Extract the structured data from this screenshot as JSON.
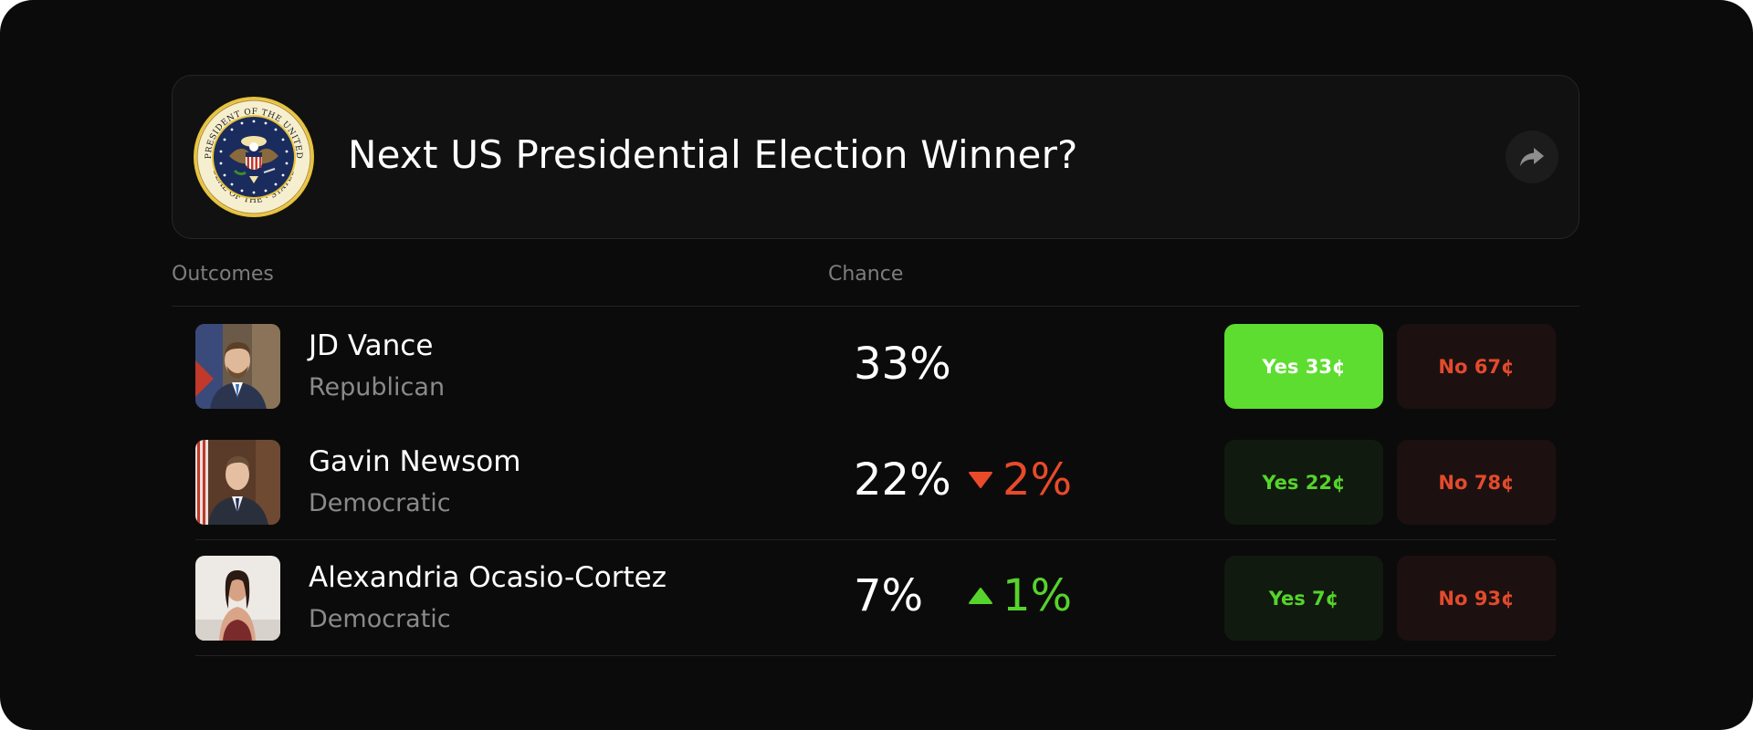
{
  "market": {
    "title": "Next US Presidential Election Winner?",
    "seal_text_top": "PRESIDENT OF THE UNITED",
    "seal_text_bottom": "SEAL OF THE · STATES"
  },
  "table": {
    "col_outcomes": "Outcomes",
    "col_chance": "Chance"
  },
  "outcomes": [
    {
      "name": "JD Vance",
      "party": "Republican",
      "chance": "33%",
      "delta": null,
      "yes_label": "Yes 33¢",
      "no_label": "No 67¢",
      "yes_active": true
    },
    {
      "name": "Gavin Newsom",
      "party": "Democratic",
      "chance": "22%",
      "delta": "2%",
      "delta_direction": "down",
      "yes_label": "Yes 22¢",
      "no_label": "No 78¢",
      "yes_active": false
    },
    {
      "name": "Alexandria Ocasio-Cortez",
      "party": "Democratic",
      "chance": "7%",
      "delta": "1%",
      "delta_direction": "up",
      "yes_label": "Yes 7¢",
      "no_label": "No 93¢",
      "yes_active": false
    }
  ],
  "colors": {
    "yes_green": "#5ddd2f",
    "no_red": "#e34a2c",
    "up_green": "#56d32c",
    "down_red": "#e84a2a"
  },
  "icons": {
    "share": "share-arrow-icon"
  }
}
